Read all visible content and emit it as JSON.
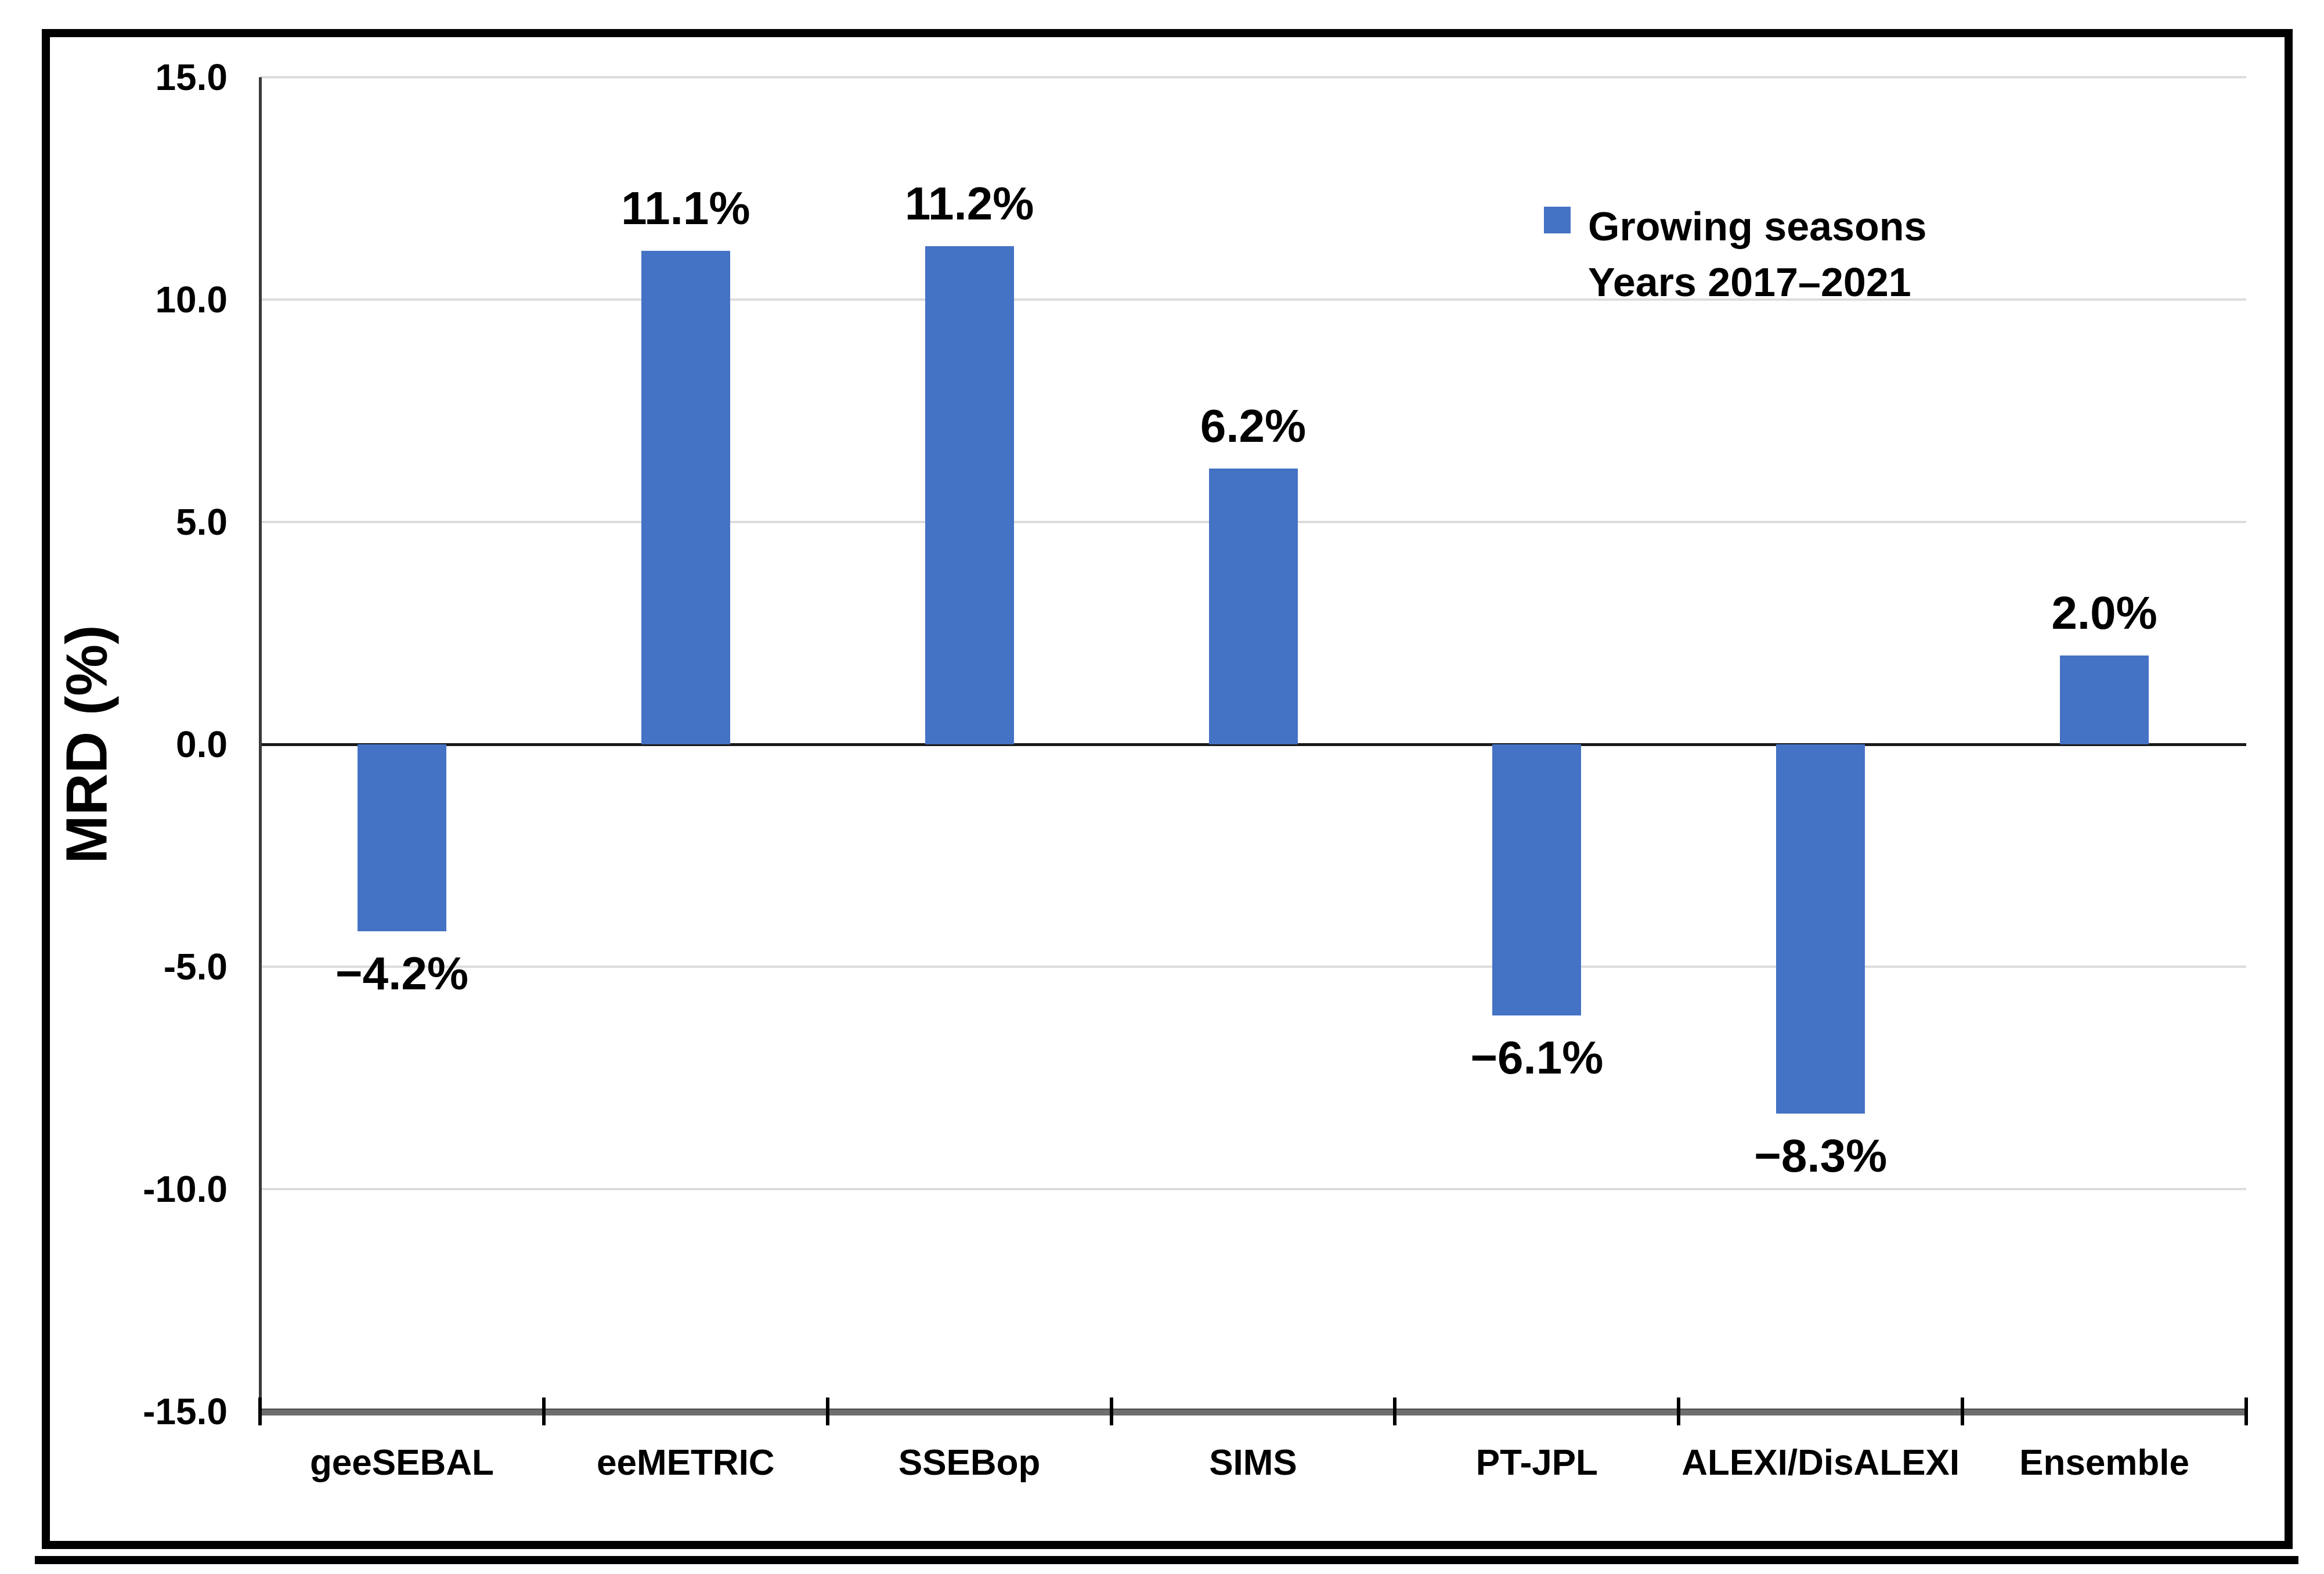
{
  "figure": {
    "background": "#ffffff",
    "frame_border_color": "#000000"
  },
  "chart_data": {
    "type": "bar",
    "title": "",
    "categories": [
      "geeSEBAL",
      "eeMETRIC",
      "SSEBop",
      "SIMS",
      "PT-JPL",
      "ALEXI/DisALEXI",
      "Ensemble"
    ],
    "values": [
      -4.2,
      11.1,
      11.2,
      6.2,
      -6.1,
      -8.3,
      2.0
    ],
    "value_labels": [
      "−4.2%",
      "11.1%",
      "11.2%",
      "6.2%",
      "−6.1%",
      "−8.3%",
      "2.0%"
    ],
    "xlabel": "",
    "ylabel": "MRD (%)",
    "ylim": [
      -15,
      15
    ],
    "yticks": [
      15.0,
      10.0,
      5.0,
      0.0,
      -5.0,
      -10.0,
      -15.0
    ],
    "ytick_labels": [
      "15.0",
      "10.0",
      "5.0",
      "0.0",
      "-5.0",
      "-10.0",
      "-15.0"
    ],
    "grid": "horizontal",
    "bar_color": "#4472C4",
    "gridline_color": "#dcdcdc",
    "legend": {
      "position": "top-right",
      "marker_color": "#4472C4",
      "lines": [
        "Growing seasons",
        "Years 2017–2021"
      ]
    }
  }
}
